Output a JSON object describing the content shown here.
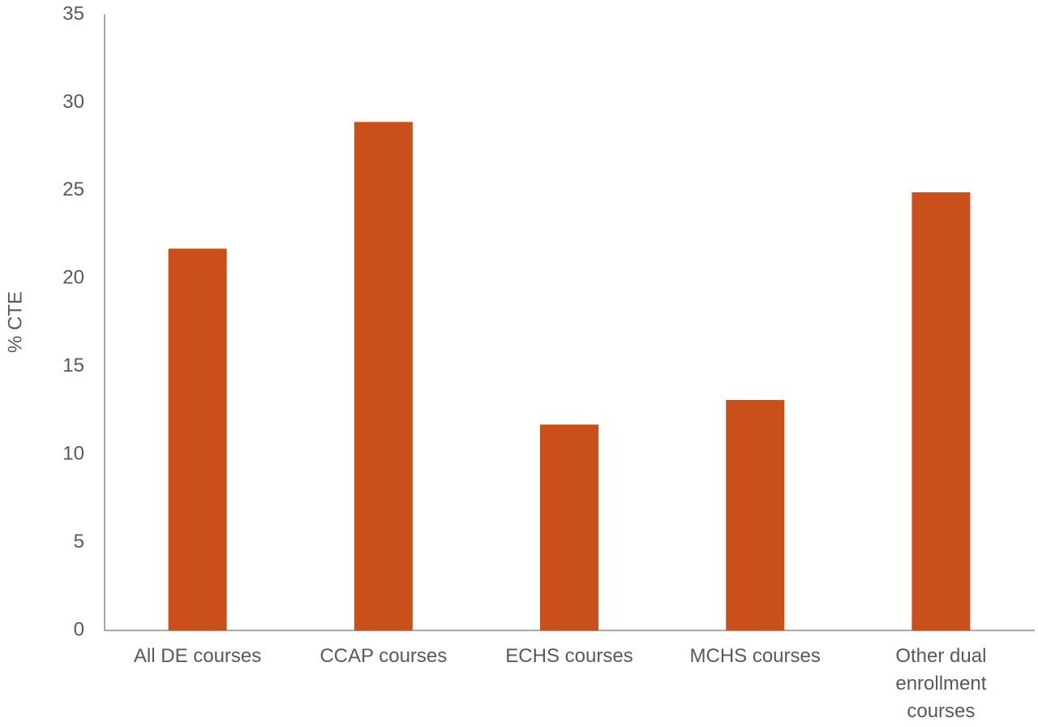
{
  "chart_data": {
    "type": "bar",
    "y_label": "% CTE",
    "categories": [
      "All DE courses",
      "CCAP courses",
      "ECHS courses",
      "MCHS courses",
      "Other dual enrollment courses"
    ],
    "values": [
      21.7,
      28.9,
      11.7,
      13.1,
      24.9
    ],
    "color": "#c94f1b",
    "ylim": [
      0,
      35
    ],
    "yticks": [
      0,
      5,
      10,
      15,
      20,
      25,
      30,
      35
    ],
    "grid": false
  }
}
